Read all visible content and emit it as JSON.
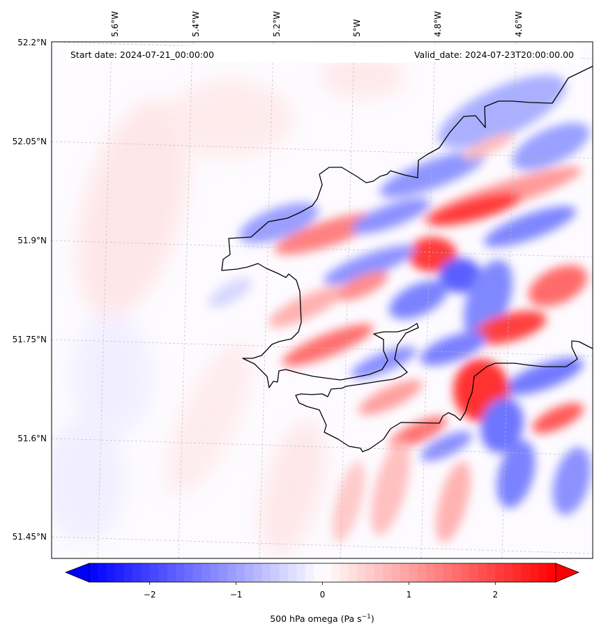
{
  "header": {
    "start_date": "Start date: 2024-07-21_00:00:00",
    "valid_date": "Valid_date: 2024-07-23T20:00:00.00"
  },
  "map": {
    "projection": "rotated lat-lon",
    "extent": {
      "lon_min": -5.75,
      "lon_max": -4.42,
      "lat_min": 51.42,
      "lat_max": 52.2
    },
    "longitude_ticks": [
      {
        "value": -5.6,
        "label": "5.6°W"
      },
      {
        "value": -5.4,
        "label": "5.4°W"
      },
      {
        "value": -5.2,
        "label": "5.2°W"
      },
      {
        "value": -5.0,
        "label": "5°W"
      },
      {
        "value": -4.8,
        "label": "4.8°W"
      },
      {
        "value": -4.6,
        "label": "4.6°W"
      }
    ],
    "latitude_ticks": [
      {
        "value": 52.2,
        "label": "52.2°N"
      },
      {
        "value": 52.05,
        "label": "52.05°N"
      },
      {
        "value": 51.9,
        "label": "51.9°N"
      },
      {
        "value": 51.75,
        "label": "51.75°N"
      },
      {
        "value": 51.6,
        "label": "51.6°N"
      },
      {
        "value": 51.45,
        "label": "51.45°N"
      }
    ],
    "gridlines": true,
    "field": {
      "variable": "500 hPa omega",
      "pattern": "banded ascent/descent waves oriented SW-NE over land, weak positive values over sea to the west"
    },
    "coastline_color": "#000000"
  },
  "colorbar": {
    "label_html": "500 hPa omega (Pa s<tspan baseline-shift=\"super\" font-size=\"9\">−1</tspan>)",
    "label": "500 hPa omega (Pa s−1)",
    "vmin": -2.7,
    "vmax": 2.7,
    "extend": "both",
    "colormap": "bwr",
    "low_color": "#0000ff",
    "mid_color": "#ffffff",
    "high_color": "#ff0000",
    "ticks": [
      {
        "value": -2,
        "label": "−2"
      },
      {
        "value": -1,
        "label": "−1"
      },
      {
        "value": 0,
        "label": "0"
      },
      {
        "value": 1,
        "label": "1"
      },
      {
        "value": 2,
        "label": "2"
      }
    ]
  }
}
